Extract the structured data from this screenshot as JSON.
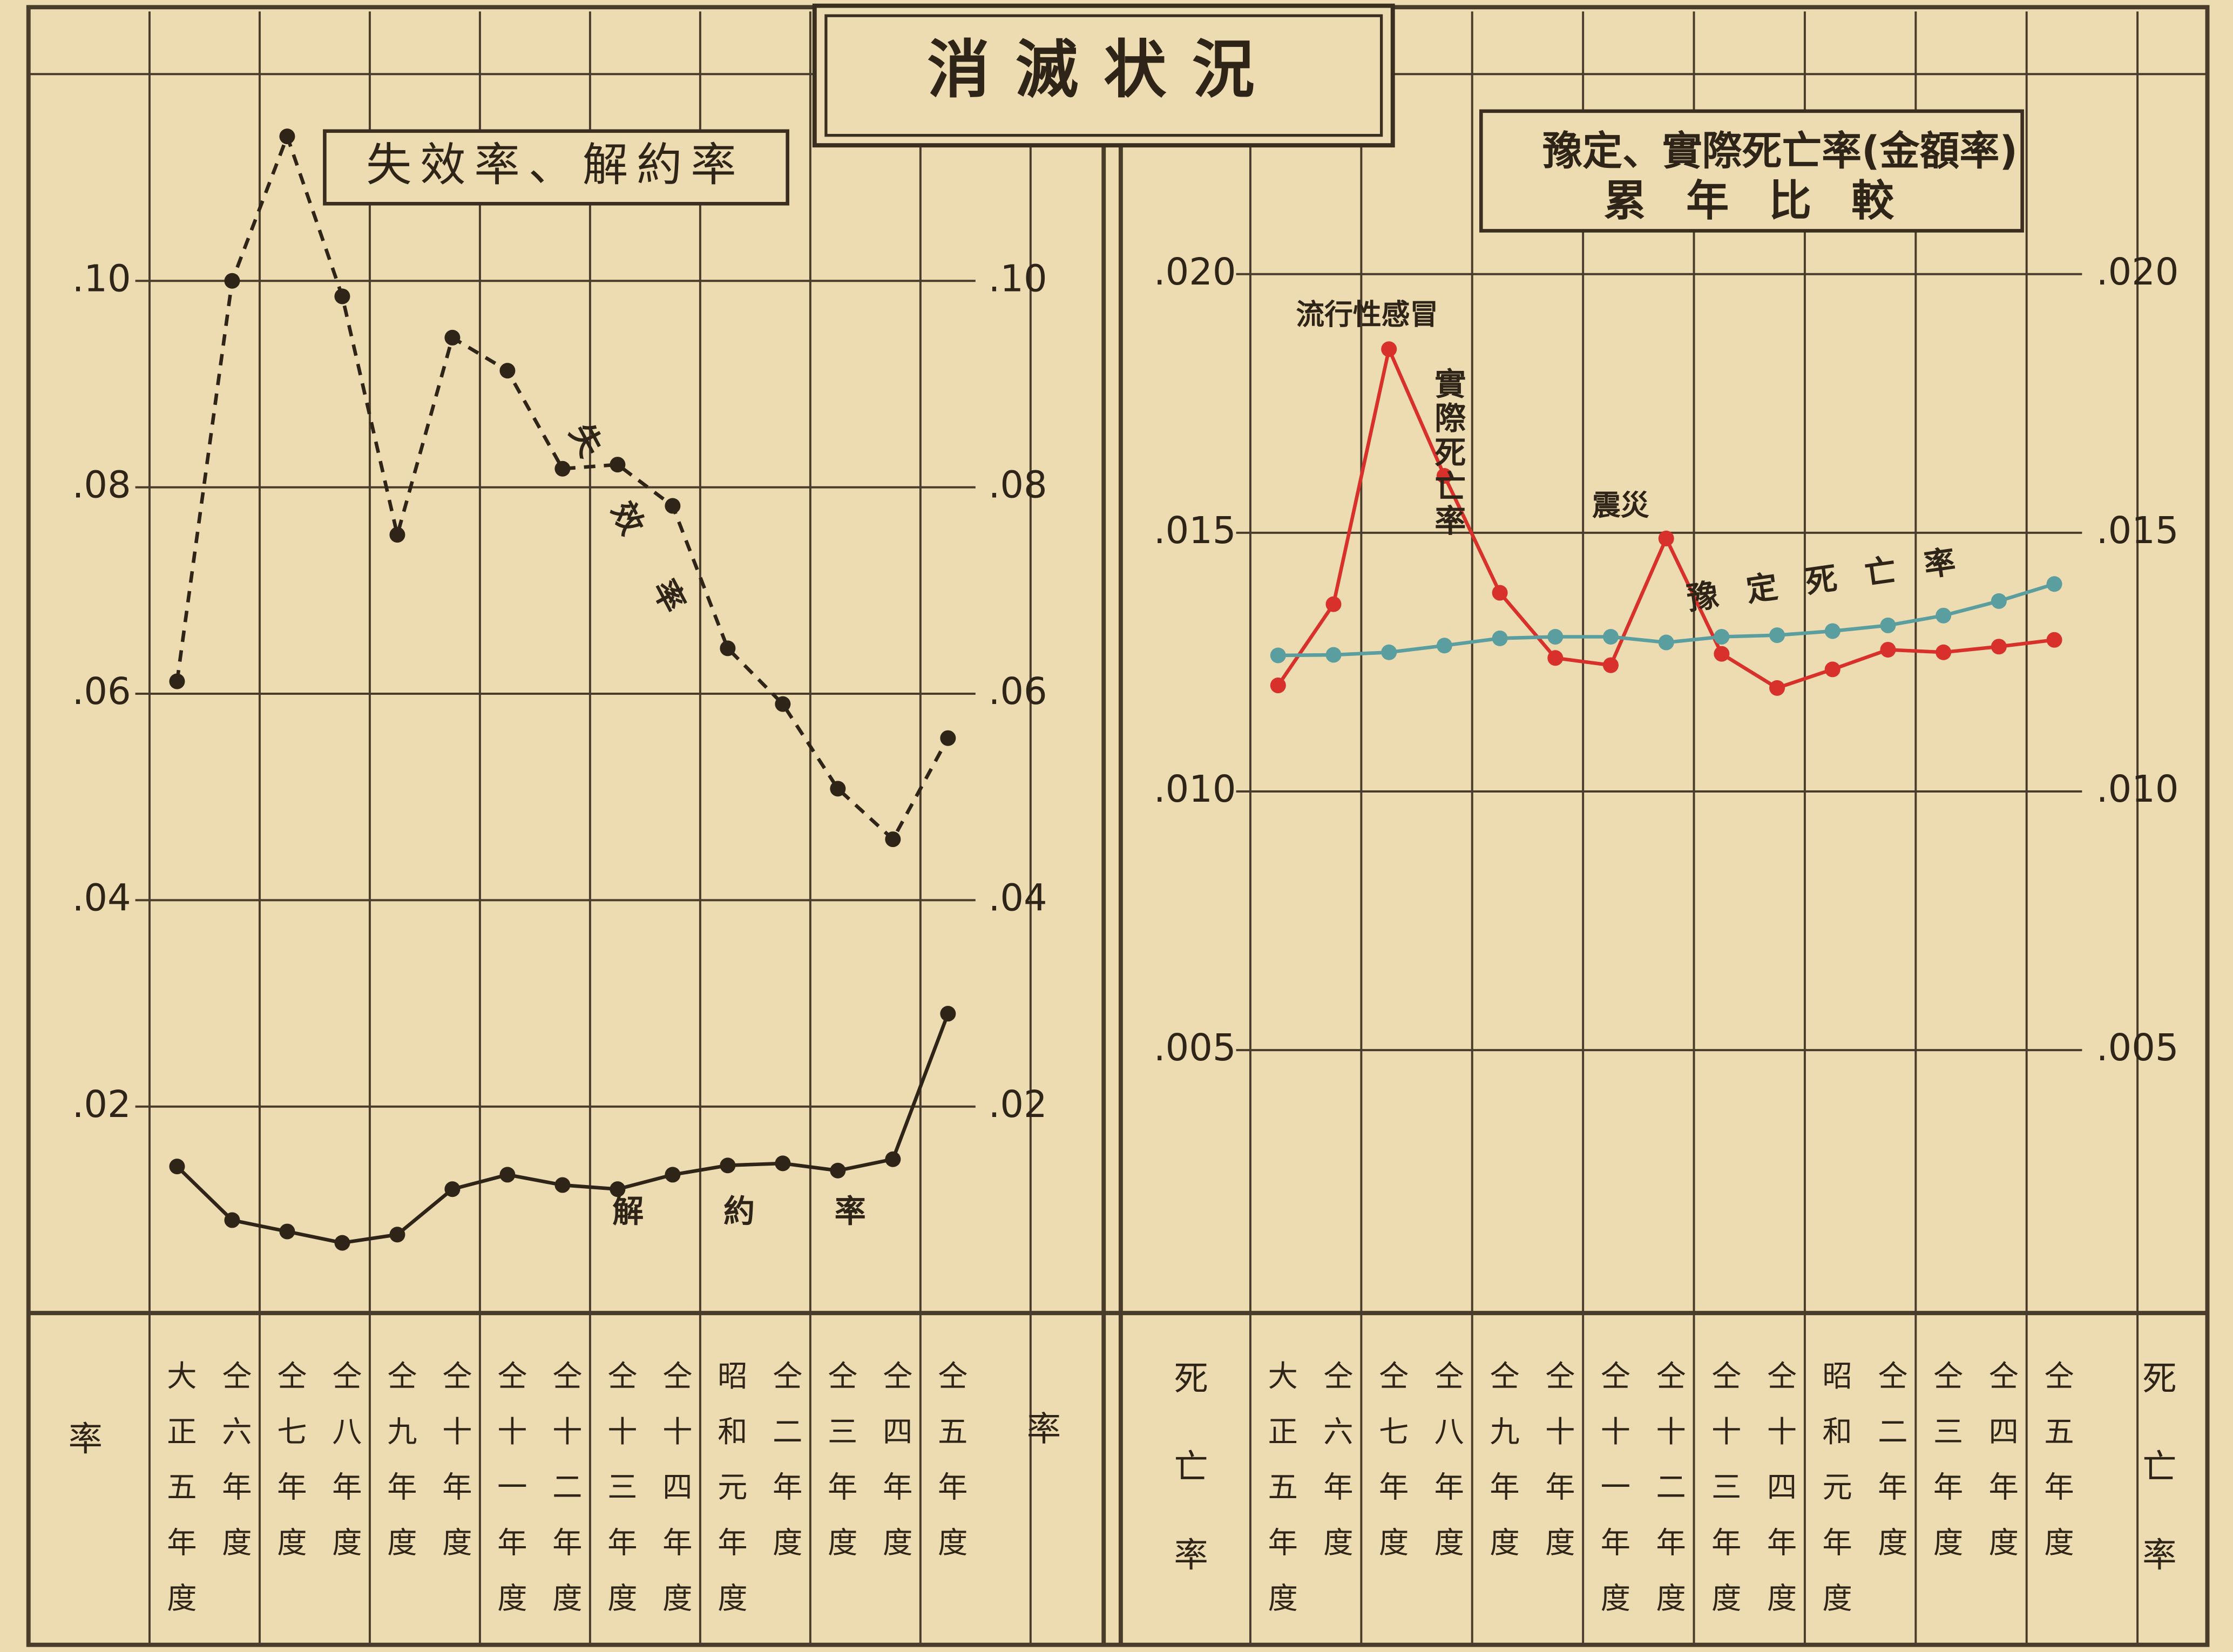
{
  "title": "消滅状況",
  "chart_data": [
    {
      "type": "line",
      "title": "失效率、解約率",
      "y_label": "率",
      "categories": [
        "大正五年度",
        "仝六年度",
        "仝七年度",
        "仝八年度",
        "仝九年度",
        "仝十年度",
        "仝十一年度",
        "仝十二年度",
        "仝十三年度",
        "仝十四年度",
        "昭和元年度",
        "仝二年度",
        "仝三年度",
        "仝四年度",
        "仝五年度"
      ],
      "series": [
        {
          "name": "失效率",
          "color": "#2e2418",
          "line_style": "dashed",
          "values": [
            0.0612,
            0.1,
            0.114,
            0.0985,
            0.0754,
            0.0945,
            0.0913,
            0.0818,
            0.0822,
            0.0782,
            0.0644,
            0.059,
            0.0508,
            0.0459,
            0.0557
          ]
        },
        {
          "name": "解約率",
          "color": "#2e2418",
          "line_style": "solid",
          "values": [
            0.0142,
            0.009,
            0.0079,
            0.0068,
            0.0076,
            0.012,
            0.0134,
            0.0124,
            0.012,
            0.0134,
            0.0143,
            0.0145,
            0.0138,
            0.0149,
            0.029
          ]
        }
      ],
      "ylim": [
        0,
        0.125
      ],
      "yticks": [
        {
          "value": 0.02,
          "label": ".02"
        },
        {
          "value": 0.04,
          "label": ".04"
        },
        {
          "value": 0.06,
          "label": ".06"
        },
        {
          "value": 0.08,
          "label": ".08"
        },
        {
          "value": 0.1,
          "label": ".10"
        }
      ],
      "grid": true
    },
    {
      "type": "line",
      "title": "豫定、實際死亡率(金額率)",
      "subtitle": "累年比較",
      "y_label": "死亡率",
      "annotations": [
        "流行性感冒",
        "震災"
      ],
      "categories": [
        "大正五年度",
        "仝六年度",
        "仝七年度",
        "仝八年度",
        "仝九年度",
        "仝十年度",
        "仝十一年度",
        "仝十二年度",
        "仝十三年度",
        "仝十四年度",
        "昭和元年度",
        "仝二年度",
        "仝三年度",
        "仝四年度",
        "仝五年度"
      ],
      "series": [
        {
          "name": "實際死亡率",
          "color": "#d8302a",
          "line_style": "solid",
          "values": [
            0.01205,
            0.01362,
            0.01855,
            0.0161,
            0.01384,
            0.01258,
            0.01244,
            0.01489,
            0.01266,
            0.012,
            0.01236,
            0.01274,
            0.01269,
            0.0128,
            0.01293
          ]
        },
        {
          "name": "豫定死亡率",
          "color": "#5a9ea0",
          "line_style": "solid",
          "values": [
            0.01263,
            0.01264,
            0.01269,
            0.01282,
            0.01296,
            0.01299,
            0.01299,
            0.01288,
            0.01299,
            0.01302,
            0.0131,
            0.01321,
            0.0134,
            0.01368,
            0.01401
          ]
        }
      ],
      "ylim": [
        0,
        0.0245
      ],
      "yticks": [
        {
          "value": 0.005,
          "label": ".005"
        },
        {
          "value": 0.01,
          "label": ".010"
        },
        {
          "value": 0.015,
          "label": ".015"
        },
        {
          "value": 0.02,
          "label": ".020"
        }
      ],
      "grid": true
    }
  ]
}
